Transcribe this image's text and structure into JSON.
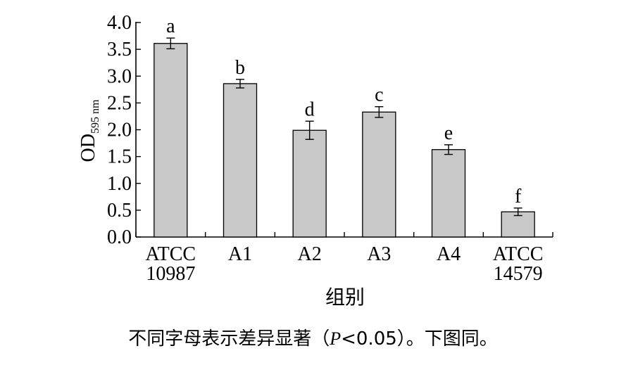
{
  "chart_data": {
    "type": "bar",
    "categories": [
      [
        "ATCC",
        "10987"
      ],
      [
        "A1"
      ],
      [
        "A2"
      ],
      [
        "A3"
      ],
      [
        "A4"
      ],
      [
        "ATCC",
        "14579"
      ]
    ],
    "values": [
      3.61,
      2.86,
      1.99,
      2.33,
      1.63,
      0.47
    ],
    "errors": [
      0.1,
      0.08,
      0.17,
      0.1,
      0.09,
      0.07
    ],
    "significance": [
      "a",
      "b",
      "d",
      "c",
      "e",
      "f"
    ],
    "ylabel": "OD",
    "ylabel_sub": "595 nm",
    "xlabel": "组别",
    "ylim": [
      0,
      4.0
    ],
    "yticks": [
      "0.0",
      "0.5",
      "1.0",
      "1.5",
      "2.0",
      "2.5",
      "3.0",
      "3.5",
      "4.0"
    ],
    "bar_color": "#c8c8c8"
  },
  "caption": {
    "before": "不同字母表示差异显著（",
    "italic": "P",
    "after": "<0.05）。下图同。"
  }
}
